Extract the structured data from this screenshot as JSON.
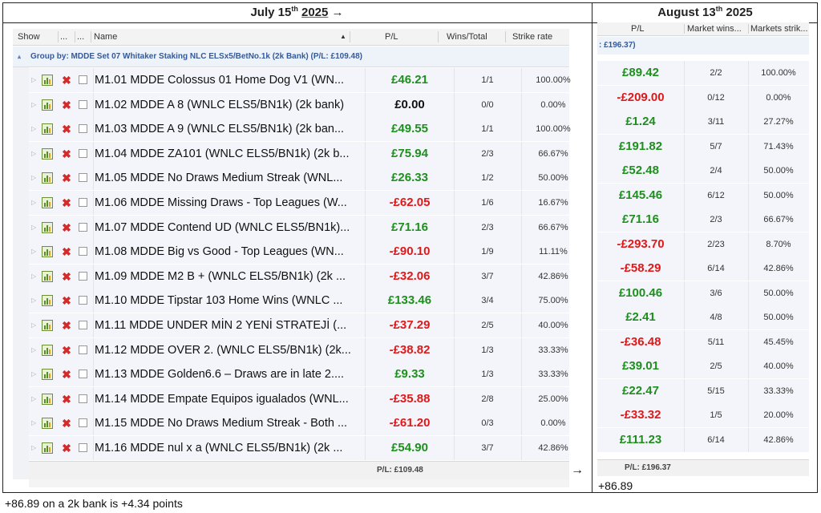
{
  "header": {
    "left_prefix": "July 15",
    "left_sup": "th",
    "left_year": "2025",
    "left_arrow": "→",
    "right_prefix": "August 13",
    "right_sup": "th",
    "right_year": "2025"
  },
  "left": {
    "columns": {
      "show": "Show",
      "dots1": "...",
      "dots2": "...",
      "name": "Name",
      "sort_arrow": "▲",
      "pl": "P/L",
      "wins": "Wins/Total",
      "strike": "Strike rate"
    },
    "group_label": "Group by: MDDE Set 07 Whitaker Staking NLC ELSx5/BetNo.1k  (2k Bank) (P/L: £109.48)",
    "footer_pl": "P/L: £109.48",
    "rows": [
      {
        "name": "M1.01 MDDE Colossus 01 Home Dog V1 (WN...",
        "pl": "£46.21",
        "sign": "pos",
        "wins": "1/1",
        "strike": "100.00%"
      },
      {
        "name": "M1.02 MDDE A 8 (WNLC ELS5/BN1k) (2k bank)",
        "pl": "£0.00",
        "sign": "zero",
        "wins": "0/0",
        "strike": "0.00%"
      },
      {
        "name": "M1.03 MDDE A 9  (WNLC ELS5/BN1k) (2k ban...",
        "pl": "£49.55",
        "sign": "pos",
        "wins": "1/1",
        "strike": "100.00%"
      },
      {
        "name": "M1.04 MDDE ZA101 (WNLC ELS5/BN1k) (2k b...",
        "pl": "£75.94",
        "sign": "pos",
        "wins": "2/3",
        "strike": "66.67%"
      },
      {
        "name": "M1.05 MDDE No Draws Medium Streak (WNL...",
        "pl": "£26.33",
        "sign": "pos",
        "wins": "1/2",
        "strike": "50.00%"
      },
      {
        "name": "M1.06 MDDE Missing Draws - Top Leagues (W...",
        "pl": "-£62.05",
        "sign": "neg",
        "wins": "1/6",
        "strike": "16.67%"
      },
      {
        "name": "M1.07 MDDE Contend UD (WNLC ELS5/BN1k)...",
        "pl": "£71.16",
        "sign": "pos",
        "wins": "2/3",
        "strike": "66.67%"
      },
      {
        "name": "M1.08 MDDE Big vs Good - Top Leagues (WN...",
        "pl": "-£90.10",
        "sign": "neg",
        "wins": "1/9",
        "strike": "11.11%"
      },
      {
        "name": "M1.09 MDDE M2 B + (WNLC ELS5/BN1k) (2k ...",
        "pl": "-£32.06",
        "sign": "neg",
        "wins": "3/7",
        "strike": "42.86%"
      },
      {
        "name": "M1.10 MDDE Tipstar 103 Home Wins (WNLC ...",
        "pl": "£133.46",
        "sign": "pos",
        "wins": "3/4",
        "strike": "75.00%"
      },
      {
        "name": "M1.11 MDDE UNDER MİN 2 YENİ STRATEJİ (...",
        "pl": "-£37.29",
        "sign": "neg",
        "wins": "2/5",
        "strike": "40.00%"
      },
      {
        "name": "M1.12 MDDE OVER 2. (WNLC ELS5/BN1k) (2k...",
        "pl": "-£38.82",
        "sign": "neg",
        "wins": "1/3",
        "strike": "33.33%"
      },
      {
        "name": "M1.13 MDDE Golden6.6 – Draws are in late 2....",
        "pl": "£9.33",
        "sign": "pos",
        "wins": "1/3",
        "strike": "33.33%"
      },
      {
        "name": "M1.14 MDDE Empate Equipos igualados (WNL...",
        "pl": "-£35.88",
        "sign": "neg",
        "wins": "2/8",
        "strike": "25.00%"
      },
      {
        "name": "M1.15 MDDE No Draws Medium Streak - Both ...",
        "pl": "-£61.20",
        "sign": "neg",
        "wins": "0/3",
        "strike": "0.00%"
      },
      {
        "name": "M1.16 MDDE nul x a (WNLC ELS5/BN1k) (2k ...",
        "pl": "£54.90",
        "sign": "pos",
        "wins": "3/7",
        "strike": "42.86%"
      }
    ]
  },
  "right": {
    "columns": {
      "pl": "P/L",
      "wins": "Market wins...",
      "strike": "Markets strik..."
    },
    "group_label": ": £196.37)",
    "footer_pl": "P/L: £196.37",
    "rows": [
      {
        "pl": "£89.42",
        "sign": "pos",
        "wins": "2/2",
        "strike": "100.00%"
      },
      {
        "pl": "-£209.00",
        "sign": "neg",
        "wins": "0/12",
        "strike": "0.00%"
      },
      {
        "pl": "£1.24",
        "sign": "pos",
        "wins": "3/11",
        "strike": "27.27%"
      },
      {
        "pl": "£191.82",
        "sign": "pos",
        "wins": "5/7",
        "strike": "71.43%"
      },
      {
        "pl": "£52.48",
        "sign": "pos",
        "wins": "2/4",
        "strike": "50.00%"
      },
      {
        "pl": "£145.46",
        "sign": "pos",
        "wins": "6/12",
        "strike": "50.00%"
      },
      {
        "pl": "£71.16",
        "sign": "pos",
        "wins": "2/3",
        "strike": "66.67%"
      },
      {
        "pl": "-£293.70",
        "sign": "neg",
        "wins": "2/23",
        "strike": "8.70%"
      },
      {
        "pl": "-£58.29",
        "sign": "neg",
        "wins": "6/14",
        "strike": "42.86%"
      },
      {
        "pl": "£100.46",
        "sign": "pos",
        "wins": "3/6",
        "strike": "50.00%"
      },
      {
        "pl": "£2.41",
        "sign": "pos",
        "wins": "4/8",
        "strike": "50.00%"
      },
      {
        "pl": "-£36.48",
        "sign": "neg",
        "wins": "5/11",
        "strike": "45.45%"
      },
      {
        "pl": "£39.01",
        "sign": "pos",
        "wins": "2/5",
        "strike": "40.00%"
      },
      {
        "pl": "£22.47",
        "sign": "pos",
        "wins": "5/15",
        "strike": "33.33%"
      },
      {
        "pl": "-£33.32",
        "sign": "neg",
        "wins": "1/5",
        "strike": "20.00%"
      },
      {
        "pl": "£111.23",
        "sign": "pos",
        "wins": "6/14",
        "strike": "42.86%"
      }
    ]
  },
  "notes": {
    "mid_arrow": "→",
    "right_note": "+86.89",
    "bottom_note": "+86.89 on a 2k bank is +4.34 points"
  },
  "colors": {
    "positive": "#1e8f1e",
    "negative": "#e01818",
    "group_text": "#355a9a",
    "row_bg": "#f4f5fa"
  }
}
